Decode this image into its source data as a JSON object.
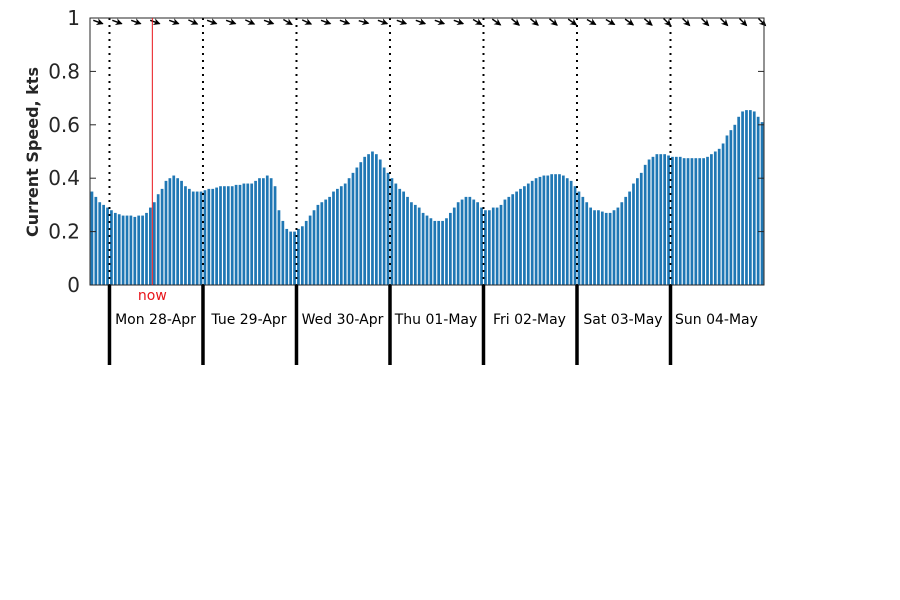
{
  "chart_data": {
    "type": "bar",
    "ylabel": "Current Speed, kts",
    "ylim": [
      0,
      1
    ],
    "yticks": [
      0,
      0.2,
      0.4,
      0.6,
      0.8,
      1
    ],
    "ytick_labels": [
      "0",
      "0.2",
      "0.4",
      "0.6",
      "0.8",
      "1"
    ],
    "grid": false,
    "colors": {
      "bars": "#1f77b4",
      "now": "#e8141a",
      "arrows": "#000000",
      "axes": "#262626"
    },
    "x_unit": "hour",
    "start": "Sun 27-Apr 19:00",
    "days": [
      "Mon 28-Apr",
      "Tue 29-Apr",
      "Wed 30-Apr",
      "Thu 01-May",
      "Fri 02-May",
      "Sat 03-May",
      "Sun 04-May"
    ],
    "now": {
      "label": "now",
      "hour_offset": 16
    },
    "values": [
      0.35,
      0.33,
      0.31,
      0.3,
      0.29,
      0.28,
      0.27,
      0.265,
      0.26,
      0.26,
      0.26,
      0.255,
      0.26,
      0.26,
      0.27,
      0.29,
      0.31,
      0.34,
      0.36,
      0.39,
      0.4,
      0.41,
      0.4,
      0.39,
      0.37,
      0.36,
      0.35,
      0.35,
      0.35,
      0.355,
      0.36,
      0.36,
      0.365,
      0.37,
      0.37,
      0.37,
      0.37,
      0.375,
      0.375,
      0.38,
      0.38,
      0.38,
      0.39,
      0.4,
      0.4,
      0.41,
      0.4,
      0.37,
      0.28,
      0.24,
      0.21,
      0.2,
      0.2,
      0.21,
      0.22,
      0.24,
      0.26,
      0.28,
      0.3,
      0.31,
      0.32,
      0.33,
      0.35,
      0.36,
      0.37,
      0.38,
      0.4,
      0.42,
      0.44,
      0.46,
      0.48,
      0.49,
      0.5,
      0.49,
      0.47,
      0.44,
      0.42,
      0.4,
      0.38,
      0.36,
      0.35,
      0.33,
      0.31,
      0.3,
      0.29,
      0.27,
      0.26,
      0.25,
      0.24,
      0.24,
      0.24,
      0.25,
      0.27,
      0.29,
      0.31,
      0.32,
      0.33,
      0.33,
      0.32,
      0.31,
      0.29,
      0.28,
      0.28,
      0.29,
      0.29,
      0.3,
      0.32,
      0.33,
      0.34,
      0.35,
      0.36,
      0.37,
      0.38,
      0.39,
      0.4,
      0.405,
      0.41,
      0.41,
      0.415,
      0.415,
      0.415,
      0.41,
      0.4,
      0.39,
      0.37,
      0.35,
      0.33,
      0.31,
      0.29,
      0.28,
      0.28,
      0.275,
      0.27,
      0.27,
      0.28,
      0.29,
      0.31,
      0.33,
      0.35,
      0.38,
      0.4,
      0.42,
      0.45,
      0.47,
      0.48,
      0.49,
      0.49,
      0.49,
      0.485,
      0.48,
      0.48,
      0.48,
      0.475,
      0.475,
      0.475,
      0.475,
      0.475,
      0.475,
      0.48,
      0.49,
      0.5,
      0.51,
      0.53,
      0.56,
      0.58,
      0.6,
      0.63,
      0.65,
      0.655,
      0.655,
      0.65,
      0.63,
      0.61
    ],
    "direction_arrows": [
      110,
      110,
      110,
      110,
      110,
      115,
      110,
      110,
      115,
      110,
      120,
      115,
      110,
      110,
      105,
      110,
      110,
      110,
      110,
      110,
      120,
      125,
      130,
      130,
      130,
      125,
      120,
      120,
      125,
      130,
      135,
      135,
      135,
      135,
      135,
      135
    ]
  }
}
